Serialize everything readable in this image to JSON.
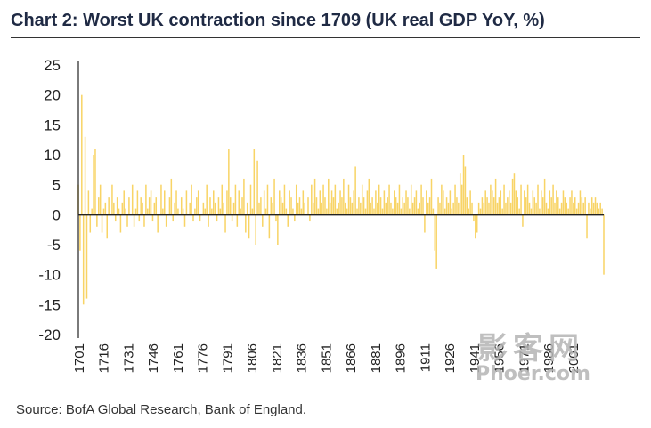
{
  "chart_data": {
    "type": "bar",
    "title": "Chart 2: Worst UK contraction since 1709 (UK real GDP YoY, %)",
    "xlabel": "",
    "ylabel": "",
    "ylim": [
      -20,
      25
    ],
    "yticks": [
      25,
      20,
      15,
      10,
      5,
      0,
      -5,
      -10,
      -15,
      -20
    ],
    "xticks": [
      "1701",
      "1716",
      "1731",
      "1746",
      "1761",
      "1776",
      "1791",
      "1806",
      "1821",
      "1836",
      "1851",
      "1866",
      "1881",
      "1896",
      "1911",
      "1926",
      "1941",
      "1956",
      "1971",
      "1986",
      "2001"
    ],
    "grid": false,
    "legend": "none",
    "bar_color": "#f7cf55",
    "zero_line_color": "#222222",
    "series": [
      {
        "name": "UK real GDP YoY, %",
        "x_start": 1701,
        "x_end": 2020,
        "values": [
          5,
          -6,
          20,
          -15,
          13,
          -14,
          4,
          -3,
          1,
          10,
          11,
          -2,
          3,
          5,
          -3,
          1,
          2,
          -4,
          3,
          0,
          5,
          2,
          -1,
          3,
          1,
          -3,
          2,
          4,
          1,
          -2,
          3,
          0,
          5,
          -2,
          1,
          4,
          -1,
          3,
          2,
          -2,
          5,
          1,
          3,
          4,
          -1,
          2,
          3,
          -3,
          0,
          5,
          1,
          4,
          -2,
          0,
          3,
          6,
          -1,
          2,
          4,
          1,
          0,
          3,
          1,
          -2,
          4,
          0,
          2,
          5,
          -1,
          1,
          3,
          4,
          -1,
          0,
          2,
          1,
          5,
          -2,
          3,
          1,
          4,
          2,
          -1,
          3,
          1,
          5,
          2,
          -3,
          4,
          11,
          3,
          -1,
          2,
          5,
          -2,
          4,
          1,
          3,
          6,
          -3,
          2,
          -4,
          5,
          1,
          11,
          -5,
          9,
          2,
          3,
          -2,
          4,
          1,
          5,
          -4,
          3,
          2,
          6,
          -1,
          -5,
          4,
          3,
          2,
          5,
          1,
          -2,
          4,
          3,
          1,
          -1,
          5,
          2,
          3,
          1,
          4,
          2,
          0,
          3,
          -1,
          5,
          2,
          6,
          3,
          1,
          4,
          2,
          5,
          3,
          1,
          6,
          2,
          4,
          3,
          5,
          1,
          2,
          4,
          3,
          6,
          2,
          1,
          5,
          3,
          2,
          4,
          8,
          1,
          3,
          2,
          5,
          3,
          1,
          4,
          6,
          2,
          3,
          1,
          4,
          2,
          5,
          3,
          1,
          4,
          2,
          3,
          5,
          2,
          1,
          4,
          3,
          2,
          5,
          1,
          3,
          2,
          4,
          3,
          1,
          5,
          2,
          3,
          4,
          1,
          2,
          5,
          3,
          -3,
          4,
          2,
          3,
          6,
          1,
          -6,
          -9,
          3,
          2,
          5,
          4,
          1,
          3,
          2,
          4,
          1,
          2,
          5,
          3,
          2,
          7,
          5,
          10,
          8,
          3,
          1,
          4,
          2,
          -1,
          -4,
          -3,
          2,
          1,
          3,
          2,
          4,
          3,
          2,
          5,
          4,
          3,
          6,
          2,
          3,
          4,
          1,
          5,
          2,
          3,
          4,
          2,
          6,
          7,
          4,
          3,
          1,
          5,
          -2,
          4,
          3,
          5,
          2,
          1,
          4,
          3,
          2,
          5,
          1,
          4,
          3,
          6,
          2,
          1,
          4,
          3,
          5,
          2,
          4,
          3,
          1,
          2,
          4,
          3,
          2,
          1,
          3,
          4,
          2,
          3,
          1,
          2,
          4,
          3,
          2,
          3,
          -4,
          2,
          1,
          3,
          2,
          3,
          2,
          1,
          2,
          1,
          -10
        ]
      }
    ]
  },
  "source": "Source: BofA Global Research, Bank of England.",
  "watermark": {
    "main": "影客网",
    "sub": "Phoer.com"
  }
}
